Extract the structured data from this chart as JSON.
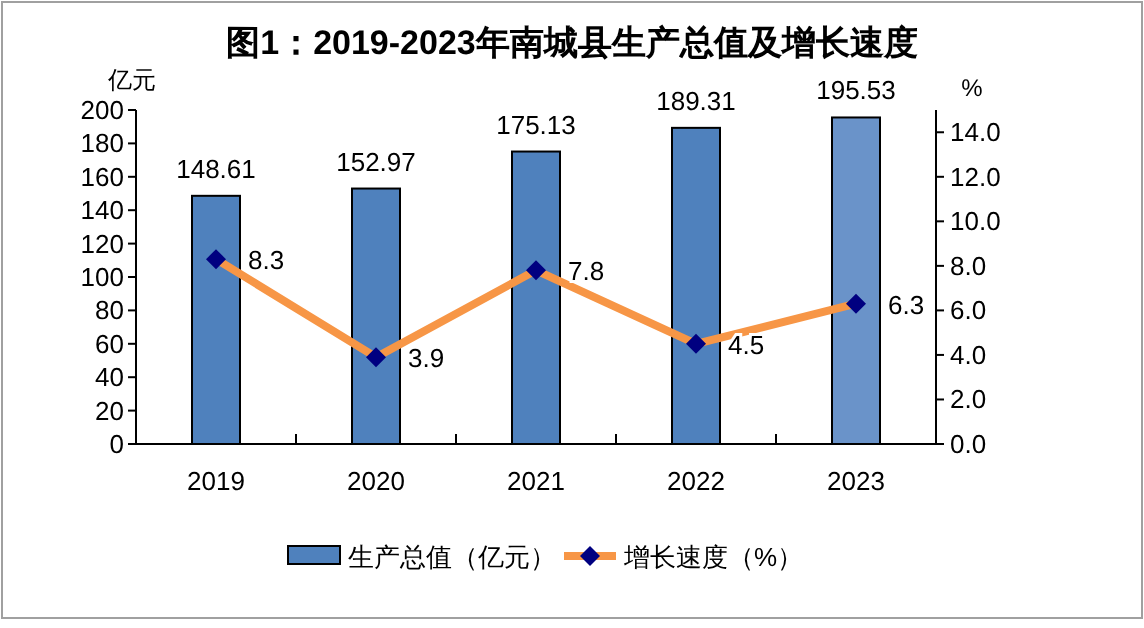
{
  "chart_data": {
    "type": "bar",
    "title": "图1：2019-2023年南城县生产总值及增长速度",
    "ylabel": "亿元",
    "y2label": "%",
    "categories": [
      "2019",
      "2020",
      "2021",
      "2022",
      "2023"
    ],
    "series": [
      {
        "name": "生产总值（亿元）",
        "colors": [
          "#4f81bd",
          "#4f81bd",
          "#4f81bd",
          "#4f81bd",
          "#6a93c9"
        ],
        "values": [
          148.61,
          152.97,
          175.13,
          189.31,
          195.53
        ]
      },
      {
        "name": "增长速度（%）",
        "type": "line",
        "axis": "y2",
        "color": "#f79646",
        "marker": "diamond",
        "values": [
          8.3,
          3.9,
          7.8,
          4.5,
          6.3
        ]
      }
    ],
    "ylim": [
      0,
      200
    ],
    "yticks": [
      0,
      20,
      40,
      60,
      80,
      100,
      120,
      140,
      160,
      180,
      200
    ],
    "y2lim": [
      0,
      15
    ],
    "y2ticks": [
      {
        "value": 0,
        "label": "0.0"
      },
      {
        "value": 2,
        "label": "2.0"
      },
      {
        "value": 4,
        "label": "4.0"
      },
      {
        "value": 6,
        "label": "6.0"
      },
      {
        "value": 8,
        "label": "8.0"
      },
      {
        "value": 10,
        "label": "10.0"
      },
      {
        "value": 12,
        "label": "12.0"
      },
      {
        "value": 14,
        "label": "14.0"
      }
    ],
    "data_labels": true,
    "legend": "bottom",
    "grid": false
  }
}
